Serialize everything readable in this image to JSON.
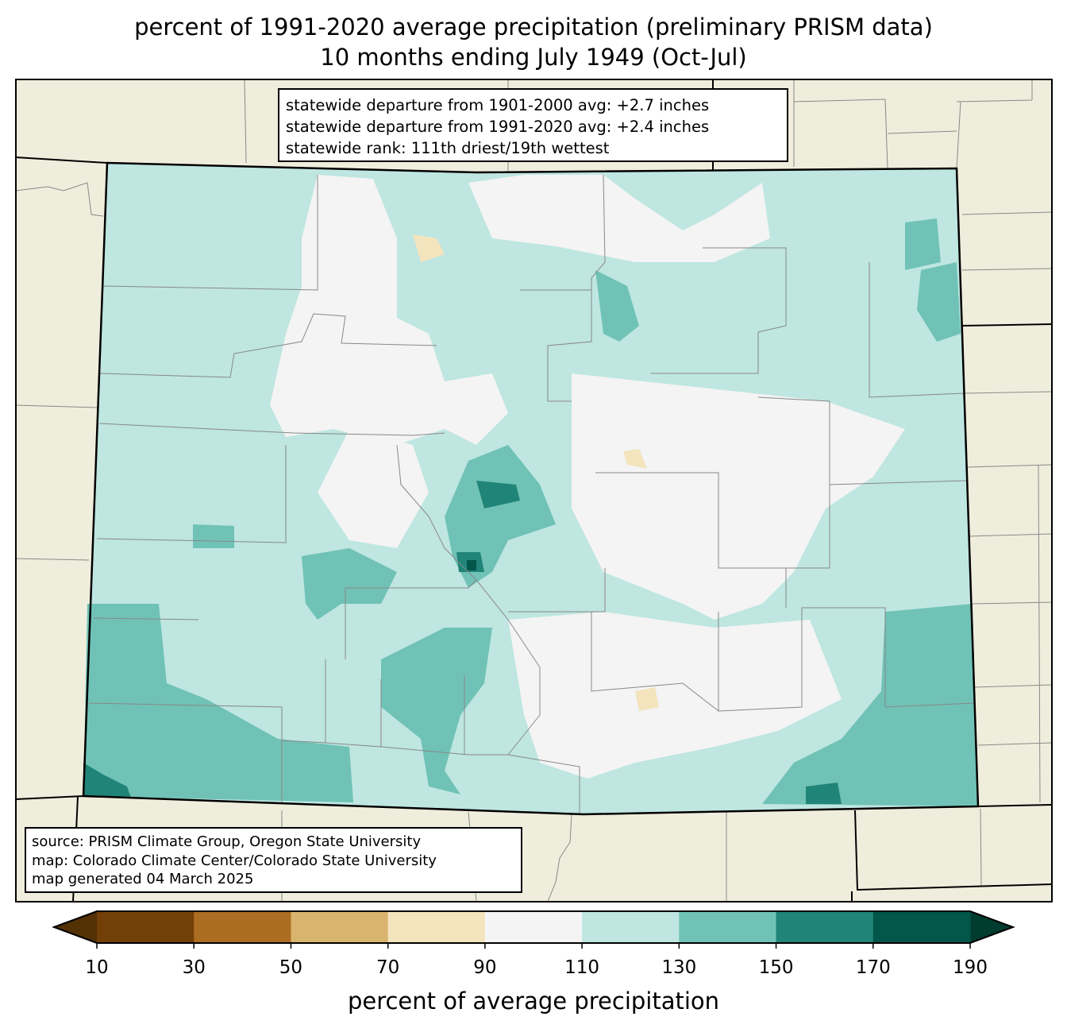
{
  "title": {
    "line1": "percent of 1991-2020 average precipitation (preliminary PRISM data)",
    "line2": "10 months ending July 1949 (Oct-Jul)"
  },
  "stats": {
    "line1": "statewide departure from 1901-2000 avg: +2.7 inches",
    "line2": "statewide departure from 1991-2020 avg: +2.4 inches",
    "line3": "statewide rank: 111th driest/19th wettest"
  },
  "source": {
    "line1": "source: PRISM Climate Group, Oregon State University",
    "line2": "map: Colorado Climate Center/Colorado State University",
    "line3": "map generated 04 March 2025"
  },
  "colorbar": {
    "label": "percent of average precipitation",
    "ticks": [
      "10",
      "30",
      "50",
      "70",
      "90",
      "110",
      "130",
      "150",
      "170",
      "190"
    ],
    "under_color": "#543005",
    "over_color": "#003c30",
    "colors": [
      "#733f09",
      "#ac6d22",
      "#d9b46e",
      "#f3e4bd",
      "#f3f4f3",
      "#bfe6e1",
      "#70c2b6",
      "#218479",
      "#02564a"
    ]
  },
  "map_colors": {
    "background": "#efeedd",
    "state": "#bfe6e1"
  }
}
